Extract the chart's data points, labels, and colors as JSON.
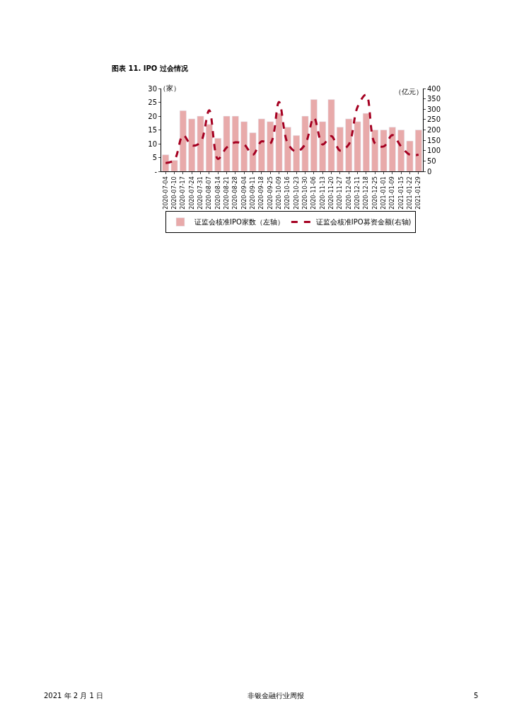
{
  "chart_data": {
    "type": "bar",
    "title": "图表 11. IPO 过会情况",
    "categories": [
      "2020-07-04",
      "2020-07-10",
      "2020-07-17",
      "2020-07-24",
      "2020-07-31",
      "2020-08-07",
      "2020-08-14",
      "2020-08-21",
      "2020-08-28",
      "2020-09-04",
      "2020-09-11",
      "2020-09-18",
      "2020-09-25",
      "2020-10-09",
      "2020-10-16",
      "2020-10-23",
      "2020-10-30",
      "2020-11-06",
      "2020-11-13",
      "2020-11-20",
      "2020-11-27",
      "2020-12-04",
      "2020-12-11",
      "2020-12-18",
      "2020-12-25",
      "2021-01-01",
      "2021-01-09",
      "2021-01-15",
      "2021-01-22",
      "2021-01-29"
    ],
    "series": [
      {
        "name": "证监会核准IPO家数（左轴）",
        "color": "#e8aaaa",
        "values": [
          6,
          4,
          22,
          19,
          20,
          17,
          12,
          20,
          20,
          18,
          14,
          19,
          18,
          21,
          16,
          13,
          20,
          26,
          18,
          26,
          16,
          19,
          18,
          21,
          15,
          15,
          16,
          15,
          11,
          15
        ]
      },
      {
        "name": "证监会核准IPO募资金额(右轴)",
        "type": "line",
        "axis": "y2",
        "color": "#a50021",
        "line_style": "dashed",
        "values": [
          40,
          55,
          175,
          125,
          140,
          295,
          60,
          115,
          140,
          130,
          80,
          145,
          135,
          335,
          135,
          95,
          130,
          260,
          130,
          170,
          100,
          130,
          310,
          370,
          135,
          120,
          175,
          120,
          80,
          80
        ]
      }
    ],
    "ylim": [
      0,
      30
    ],
    "yticks": [
      {
        "value": 0,
        "label": "-"
      },
      5,
      10,
      15,
      20,
      25,
      30
    ],
    "y2lim": [
      0,
      400
    ],
    "y2ticks": [
      0,
      50,
      100,
      150,
      200,
      250,
      300,
      350,
      400
    ],
    "ylabel": "（家）",
    "y2label": "（亿元）",
    "legend": "bottom",
    "annotations": [
      "2021 年 2 月 1 日",
      "非银金融行业周报",
      "5"
    ]
  }
}
